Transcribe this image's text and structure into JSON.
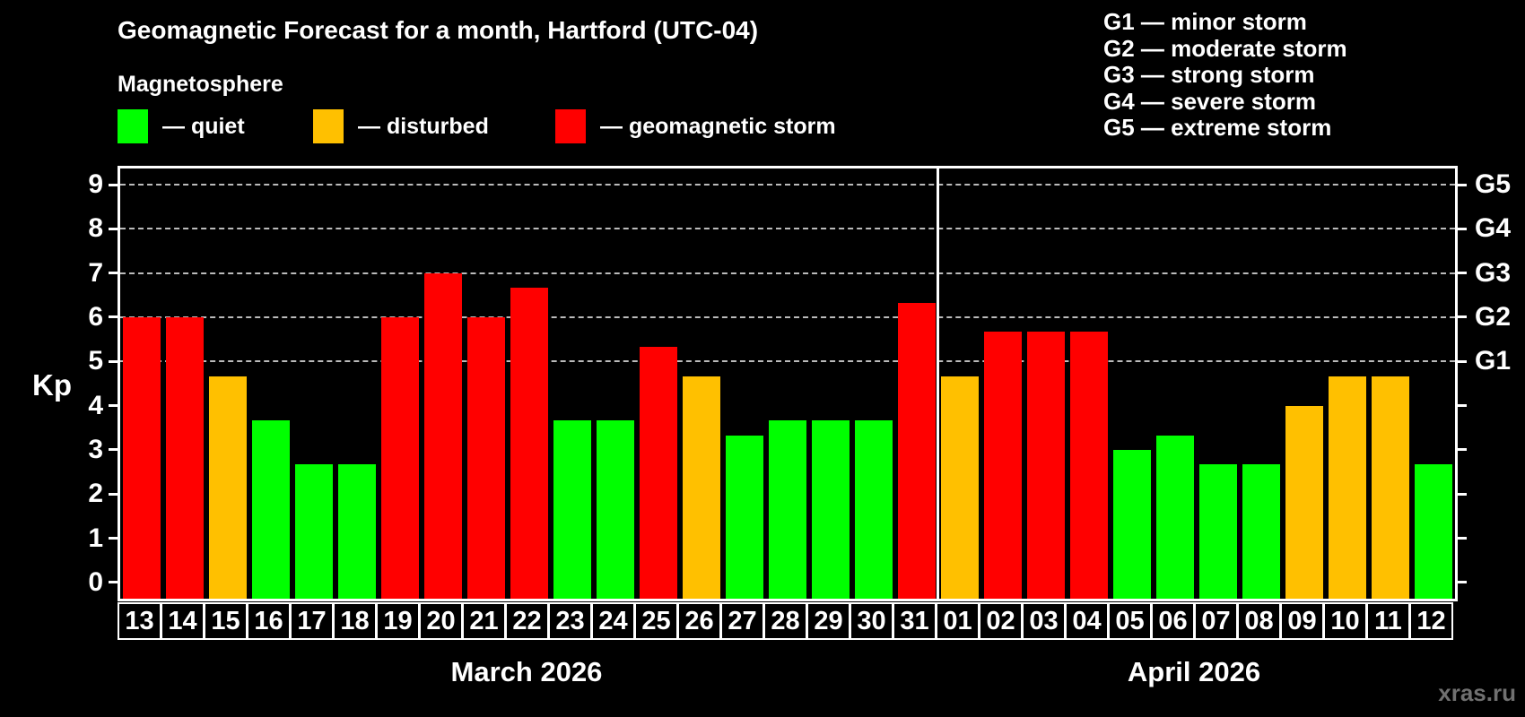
{
  "title": "Geomagnetic Forecast for a month, Hartford (UTC-04)",
  "subtitle": "Magnetosphere",
  "watermark": "xras.ru",
  "colors": {
    "quiet": "#00ff00",
    "disturbed": "#ffc000",
    "storm": "#ff0000",
    "background": "#000000",
    "grid": "#bbbbbb",
    "axis": "#ffffff",
    "watermark_text": "#707070"
  },
  "magnetosphere_legend": [
    {
      "status": "quiet",
      "label": "— quiet"
    },
    {
      "status": "disturbed",
      "label": "— disturbed"
    },
    {
      "status": "storm",
      "label": "— geomagnetic storm"
    }
  ],
  "storm_scale_legend": [
    "G1 — minor storm",
    "G2 — moderate storm",
    "G3 — strong storm",
    "G4 — severe storm",
    "G5 — extreme storm"
  ],
  "chart_data": {
    "type": "bar",
    "title": "Geomagnetic Forecast for a month, Hartford (UTC-04)",
    "ylabel": "Kp",
    "ylim": [
      0,
      9
    ],
    "grid": "dashed horizontal at storm levels only",
    "gridlines_kp": [
      5,
      6,
      7,
      8,
      9
    ],
    "left_ticks": [
      0,
      1,
      2,
      3,
      4,
      5,
      6,
      7,
      8,
      9
    ],
    "right_axis": [
      {
        "kp": 5,
        "label": "G1"
      },
      {
        "kp": 6,
        "label": "G2"
      },
      {
        "kp": 7,
        "label": "G3"
      },
      {
        "kp": 8,
        "label": "G4"
      },
      {
        "kp": 9,
        "label": "G5"
      }
    ],
    "months": [
      {
        "label": "March 2026",
        "bars": [
          {
            "day": "13",
            "kp": 6.0,
            "status": "storm"
          },
          {
            "day": "14",
            "kp": 6.0,
            "status": "storm"
          },
          {
            "day": "15",
            "kp": 4.67,
            "status": "disturbed"
          },
          {
            "day": "16",
            "kp": 3.67,
            "status": "quiet"
          },
          {
            "day": "17",
            "kp": 2.67,
            "status": "quiet"
          },
          {
            "day": "18",
            "kp": 2.67,
            "status": "quiet"
          },
          {
            "day": "19",
            "kp": 6.0,
            "status": "storm"
          },
          {
            "day": "20",
            "kp": 7.0,
            "status": "storm"
          },
          {
            "day": "21",
            "kp": 6.0,
            "status": "storm"
          },
          {
            "day": "22",
            "kp": 6.67,
            "status": "storm"
          },
          {
            "day": "23",
            "kp": 3.67,
            "status": "quiet"
          },
          {
            "day": "24",
            "kp": 3.67,
            "status": "quiet"
          },
          {
            "day": "25",
            "kp": 5.33,
            "status": "storm"
          },
          {
            "day": "26",
            "kp": 4.67,
            "status": "disturbed"
          },
          {
            "day": "27",
            "kp": 3.33,
            "status": "quiet"
          },
          {
            "day": "28",
            "kp": 3.67,
            "status": "quiet"
          },
          {
            "day": "29",
            "kp": 3.67,
            "status": "quiet"
          },
          {
            "day": "30",
            "kp": 3.67,
            "status": "quiet"
          },
          {
            "day": "31",
            "kp": 6.33,
            "status": "storm"
          }
        ]
      },
      {
        "label": "April 2026",
        "bars": [
          {
            "day": "01",
            "kp": 4.67,
            "status": "disturbed"
          },
          {
            "day": "02",
            "kp": 5.67,
            "status": "storm"
          },
          {
            "day": "03",
            "kp": 5.67,
            "status": "storm"
          },
          {
            "day": "04",
            "kp": 5.67,
            "status": "storm"
          },
          {
            "day": "05",
            "kp": 3.0,
            "status": "quiet"
          },
          {
            "day": "06",
            "kp": 3.33,
            "status": "quiet"
          },
          {
            "day": "07",
            "kp": 2.67,
            "status": "quiet"
          },
          {
            "day": "08",
            "kp": 2.67,
            "status": "quiet"
          },
          {
            "day": "09",
            "kp": 4.0,
            "status": "disturbed"
          },
          {
            "day": "10",
            "kp": 4.67,
            "status": "disturbed"
          },
          {
            "day": "11",
            "kp": 4.67,
            "status": "disturbed"
          },
          {
            "day": "12",
            "kp": 2.67,
            "status": "quiet"
          }
        ]
      }
    ]
  }
}
